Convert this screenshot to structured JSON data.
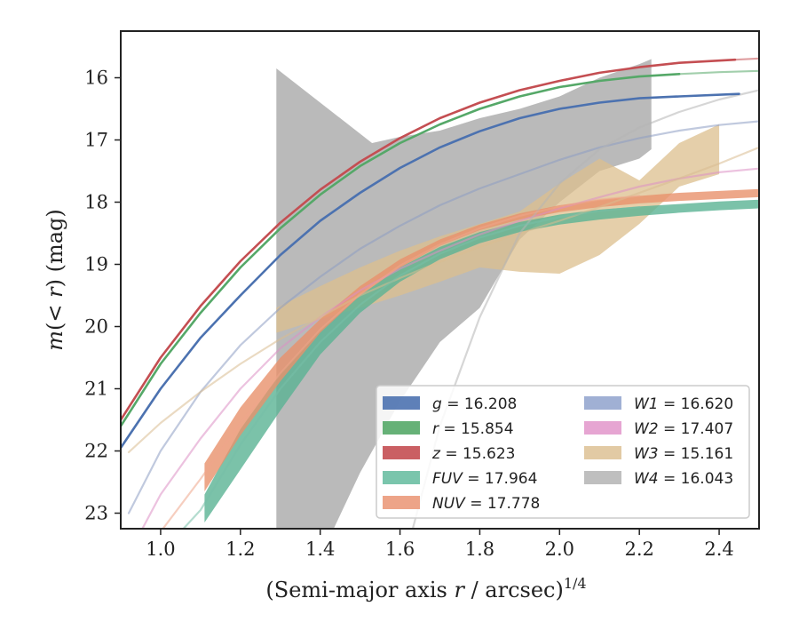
{
  "chart_data": {
    "type": "line",
    "xlabel": "(Semi-major axis r / arcsec)^{1/4}",
    "ylabel": "m(<r) (mag)",
    "xlim": [
      0.9,
      2.5
    ],
    "ylim": [
      23.25,
      15.25
    ],
    "y_inverted": true,
    "x_ticks": [
      "1.0",
      "1.2",
      "1.4",
      "1.6",
      "1.8",
      "2.0",
      "2.2",
      "2.4"
    ],
    "y_ticks": [
      "16",
      "17",
      "18",
      "19",
      "20",
      "21",
      "22",
      "23"
    ],
    "grid": false,
    "legend_position": "lower-right",
    "legend": [
      {
        "band": "g",
        "text": "= 16.208"
      },
      {
        "band": "r",
        "text": "= 15.854"
      },
      {
        "band": "z",
        "text": "= 15.623"
      },
      {
        "band": "FUV",
        "text": "= 17.964"
      },
      {
        "band": "NUV",
        "text": "= 17.778"
      },
      {
        "band": "W1",
        "text": "= 16.620"
      },
      {
        "band": "W2",
        "text": "= 17.407"
      },
      {
        "band": "W3",
        "text": "= 15.161"
      },
      {
        "band": "W4",
        "text": "= 16.043"
      }
    ],
    "series": [
      {
        "name": "g",
        "color": "#4c72b0",
        "style": "line",
        "x": [
          0.9,
          1.0,
          1.1,
          1.2,
          1.3,
          1.4,
          1.5,
          1.6,
          1.7,
          1.8,
          1.9,
          2.0,
          2.1,
          2.2,
          2.3,
          2.45
        ],
        "y": [
          21.95,
          21.0,
          20.18,
          19.5,
          18.85,
          18.3,
          17.85,
          17.45,
          17.12,
          16.86,
          16.65,
          16.5,
          16.4,
          16.33,
          16.3,
          16.26
        ]
      },
      {
        "name": "r",
        "color": "#55a868",
        "style": "line",
        "x": [
          0.9,
          1.0,
          1.1,
          1.2,
          1.3,
          1.4,
          1.5,
          1.6,
          1.7,
          1.8,
          1.9,
          2.0,
          2.1,
          2.2,
          2.3
        ],
        "y": [
          21.6,
          20.6,
          19.78,
          19.05,
          18.42,
          17.88,
          17.42,
          17.05,
          16.75,
          16.5,
          16.3,
          16.15,
          16.05,
          15.98,
          15.94
        ]
      },
      {
        "name": "r_fit",
        "color": "#55a868",
        "style": "faint",
        "x": [
          2.3,
          2.4,
          2.5
        ],
        "y": [
          15.94,
          15.91,
          15.89
        ]
      },
      {
        "name": "z",
        "color": "#c44e52",
        "style": "line",
        "x": [
          0.9,
          1.0,
          1.1,
          1.2,
          1.3,
          1.4,
          1.5,
          1.6,
          1.7,
          1.8,
          1.9,
          2.0,
          2.1,
          2.2,
          2.3,
          2.44
        ],
        "y": [
          21.5,
          20.5,
          19.67,
          18.95,
          18.33,
          17.8,
          17.35,
          16.97,
          16.65,
          16.4,
          16.2,
          16.05,
          15.92,
          15.83,
          15.76,
          15.71
        ]
      },
      {
        "name": "z_fit",
        "color": "#c44e52",
        "style": "faint",
        "x": [
          2.44,
          2.5
        ],
        "y": [
          15.71,
          15.69
        ]
      },
      {
        "name": "W1",
        "color": "#8c9dc3",
        "style": "faint",
        "x": [
          0.92,
          1.0,
          1.1,
          1.2,
          1.3,
          1.4,
          1.5,
          1.6,
          1.7,
          1.8,
          1.9,
          2.0,
          2.1,
          2.2,
          2.3,
          2.4,
          2.5
        ],
        "y": [
          23.0,
          22.0,
          21.05,
          20.3,
          19.7,
          19.2,
          18.75,
          18.38,
          18.05,
          17.78,
          17.55,
          17.32,
          17.12,
          16.97,
          16.85,
          16.76,
          16.7
        ]
      },
      {
        "name": "W2",
        "color": "#dc8fc5",
        "style": "faint",
        "x": [
          0.95,
          1.0,
          1.1,
          1.2,
          1.3,
          1.4,
          1.5,
          1.6,
          1.7,
          1.8,
          1.9,
          2.0,
          2.1,
          2.2,
          2.3,
          2.4,
          2.5
        ],
        "y": [
          23.3,
          22.7,
          21.8,
          21.0,
          20.35,
          19.85,
          19.42,
          19.07,
          18.78,
          18.52,
          18.3,
          18.1,
          17.92,
          17.75,
          17.62,
          17.52,
          17.46
        ]
      },
      {
        "name": "W3",
        "color": "#d9bc8f",
        "style": "faint",
        "x": [
          0.92,
          1.0,
          1.1,
          1.2,
          1.3,
          1.4,
          1.5,
          1.6,
          1.7,
          1.8,
          1.9,
          2.0,
          2.1,
          2.2,
          2.3,
          2.4,
          2.5
        ],
        "y": [
          22.02,
          21.55,
          21.05,
          20.6,
          20.2,
          19.85,
          19.5,
          19.22,
          18.96,
          18.72,
          18.5,
          18.3,
          18.08,
          17.85,
          17.62,
          17.38,
          17.12
        ]
      },
      {
        "name": "W4",
        "color": "#b5b5b5",
        "style": "faint",
        "x": [
          1.63,
          1.7,
          1.8,
          1.9,
          2.0,
          2.1,
          2.2,
          2.3,
          2.4,
          2.5
        ],
        "y": [
          23.3,
          21.6,
          19.85,
          18.5,
          17.7,
          17.15,
          16.8,
          16.55,
          16.35,
          16.2
        ]
      },
      {
        "name": "FUV_fit",
        "color": "#76c0a8",
        "style": "faint",
        "x": [
          1.05,
          1.1,
          1.2,
          1.3,
          1.4,
          1.5,
          1.6,
          1.7,
          1.8,
          1.9,
          2.0,
          2.1,
          2.2
        ],
        "y": [
          23.3,
          22.95,
          21.9,
          21.0,
          20.25,
          19.65,
          19.18,
          18.83,
          18.57,
          18.38,
          18.24,
          18.14,
          18.08
        ]
      },
      {
        "name": "NUV_fit",
        "color": "#eea58a",
        "style": "faint",
        "x": [
          1.0,
          1.1,
          1.2,
          1.3,
          1.4,
          1.5,
          1.6,
          1.7,
          1.8,
          1.9,
          2.0,
          2.1,
          2.2
        ],
        "y": [
          23.3,
          22.45,
          21.55,
          20.75,
          20.05,
          19.48,
          19.02,
          18.68,
          18.42,
          18.22,
          18.07,
          17.96,
          17.9
        ]
      }
    ],
    "bands": [
      {
        "name": "W4",
        "color": "#b3b3b3",
        "opacity": 0.9,
        "x": [
          1.29,
          1.29,
          1.53,
          1.6,
          1.7,
          1.8,
          1.9,
          2.0,
          2.1,
          2.2,
          2.23,
          2.23,
          2.2,
          2.1,
          2.0,
          1.9,
          1.8,
          1.7,
          1.6,
          1.5,
          1.43,
          1.29
        ],
        "y_low": null,
        "polygon_y": [
          23.3,
          15.85,
          17.05,
          16.95,
          16.85,
          16.65,
          16.5,
          16.3,
          16.0,
          15.78,
          15.7,
          17.15,
          17.3,
          17.5,
          18.0,
          18.6,
          19.7,
          20.25,
          21.2,
          22.35,
          23.3,
          23.3
        ]
      },
      {
        "name": "W3",
        "color": "#dcbf8e",
        "opacity": 0.75,
        "x": [
          1.29,
          1.4,
          1.5,
          1.6,
          1.7,
          1.8,
          1.9,
          2.0,
          2.1,
          2.2,
          2.3,
          2.4,
          2.4,
          2.3,
          2.2,
          2.1,
          2.0,
          1.9,
          1.8,
          1.7,
          1.6,
          1.5,
          1.4,
          1.29
        ],
        "polygon_y": [
          19.7,
          19.35,
          19.05,
          18.78,
          18.55,
          18.35,
          18.15,
          17.7,
          17.3,
          17.65,
          17.05,
          16.75,
          17.55,
          17.75,
          18.35,
          18.85,
          19.15,
          19.12,
          19.05,
          19.28,
          19.5,
          19.7,
          19.88,
          20.1
        ]
      },
      {
        "name": "FUV",
        "color": "#5ab394",
        "opacity": 0.8,
        "x": [
          1.11,
          1.2,
          1.3,
          1.4,
          1.5,
          1.6,
          1.7,
          1.8,
          1.9,
          2.0,
          2.1,
          2.2,
          2.3,
          2.4,
          2.5,
          2.5,
          2.4,
          2.3,
          2.2,
          2.1,
          2.0,
          1.9,
          1.8,
          1.7,
          1.6,
          1.5,
          1.4,
          1.3,
          1.2,
          1.11
        ],
        "polygon_y": [
          22.7,
          21.65,
          20.75,
          20.05,
          19.5,
          19.05,
          18.72,
          18.48,
          18.32,
          18.2,
          18.12,
          18.07,
          18.03,
          17.99,
          17.96,
          18.1,
          18.13,
          18.17,
          18.22,
          18.28,
          18.36,
          18.48,
          18.66,
          18.92,
          19.28,
          19.78,
          20.45,
          21.35,
          22.3,
          23.15
        ]
      },
      {
        "name": "NUV",
        "color": "#e8916b",
        "opacity": 0.8,
        "x": [
          1.11,
          1.2,
          1.3,
          1.4,
          1.5,
          1.6,
          1.7,
          1.8,
          1.9,
          2.0,
          2.1,
          2.2,
          2.3,
          2.4,
          2.5,
          2.5,
          2.4,
          2.3,
          2.2,
          2.1,
          2.0,
          1.9,
          1.8,
          1.7,
          1.6,
          1.5,
          1.4,
          1.3,
          1.2,
          1.11
        ],
        "polygon_y": [
          22.2,
          21.3,
          20.5,
          19.88,
          19.35,
          18.92,
          18.6,
          18.36,
          18.18,
          18.05,
          17.96,
          17.9,
          17.85,
          17.82,
          17.79,
          17.92,
          17.95,
          17.98,
          18.02,
          18.08,
          18.16,
          18.28,
          18.45,
          18.7,
          19.05,
          19.5,
          20.1,
          20.88,
          21.75,
          22.65
        ]
      }
    ]
  }
}
